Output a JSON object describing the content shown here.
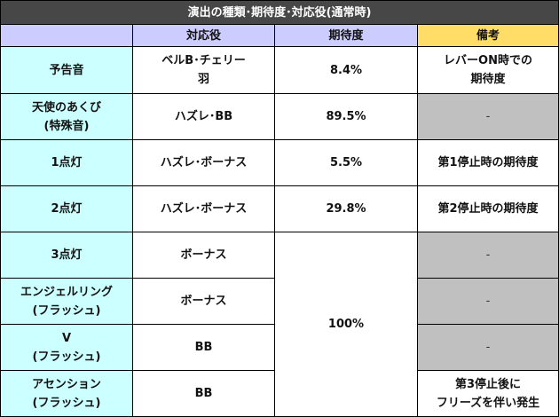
{
  "title": "演出の種類･期待度･対応役(通常時)",
  "headers": {
    "blank": "",
    "role": "対応役",
    "expectation": "期待度",
    "note": "備考"
  },
  "rows": [
    {
      "name_lines": [
        "予告音"
      ],
      "role_lines": [
        "ベルB･チェリー",
        "羽"
      ],
      "expectation": "8.4%",
      "note_lines": [
        "レバーON時での",
        "期待度"
      ]
    },
    {
      "name_lines": [
        "天使のあくび",
        "(特殊音)"
      ],
      "role_lines": [
        "ハズレ･BB"
      ],
      "expectation": "89.5%",
      "note_lines": [
        "-"
      ]
    },
    {
      "name_lines": [
        "1点灯"
      ],
      "role_lines": [
        "ハズレ･ボーナス"
      ],
      "expectation": "5.5%",
      "note_lines": [
        "第1停止時の期待度"
      ]
    },
    {
      "name_lines": [
        "2点灯"
      ],
      "role_lines": [
        "ハズレ･ボーナス"
      ],
      "expectation": "29.8%",
      "note_lines": [
        "第2停止時の期待度"
      ]
    },
    {
      "name_lines": [
        "3点灯"
      ],
      "role_lines": [
        "ボーナス"
      ],
      "expectation": "100%",
      "note_lines": [
        "-"
      ]
    },
    {
      "name_lines": [
        "エンジェルリング",
        "(フラッシュ)"
      ],
      "role_lines": [
        "ボーナス"
      ],
      "note_lines": [
        "-"
      ]
    },
    {
      "name_lines": [
        "V",
        "(フラッシュ)"
      ],
      "role_lines": [
        "BB"
      ],
      "note_lines": [
        "-"
      ]
    },
    {
      "name_lines": [
        "アセンション",
        "(フラッシュ)"
      ],
      "role_lines": [
        "BB"
      ],
      "note_lines": [
        "第3停止後に",
        "フリーズを伴い発生"
      ]
    }
  ]
}
